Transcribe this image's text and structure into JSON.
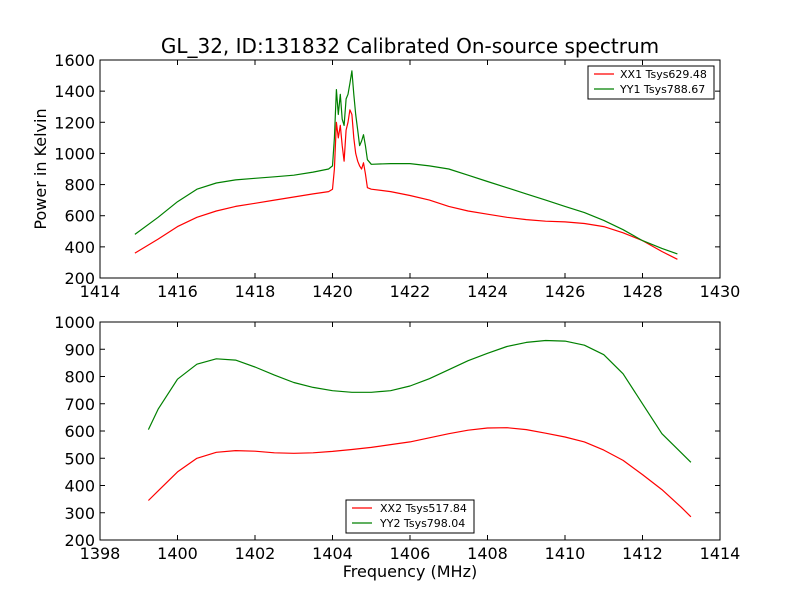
{
  "chart_data": [
    {
      "type": "line",
      "title": "GL_32, ID:131832 Calibrated On-source spectrum",
      "xlabel": "",
      "ylabel": "Power in Kelvin",
      "xlim": [
        1414,
        1430
      ],
      "ylim": [
        200,
        1600
      ],
      "xticks": [
        1414,
        1416,
        1418,
        1420,
        1422,
        1424,
        1426,
        1428,
        1430
      ],
      "yticks": [
        200,
        400,
        600,
        800,
        1000,
        1200,
        1400,
        1600
      ],
      "grid": false,
      "legend_position": "top-right",
      "series": [
        {
          "name": "XX1 Tsys629.48",
          "color": "#ff0000",
          "x": [
            1414.9,
            1415.5,
            1416.0,
            1416.5,
            1417.0,
            1417.5,
            1418.0,
            1418.5,
            1419.0,
            1419.5,
            1419.9,
            1420.0,
            1420.05,
            1420.1,
            1420.15,
            1420.2,
            1420.25,
            1420.3,
            1420.35,
            1420.4,
            1420.45,
            1420.5,
            1420.55,
            1420.6,
            1420.65,
            1420.7,
            1420.75,
            1420.8,
            1420.85,
            1420.9,
            1421.0,
            1421.5,
            1422.0,
            1422.5,
            1423.0,
            1423.5,
            1424.0,
            1424.5,
            1425.0,
            1425.5,
            1426.0,
            1426.5,
            1427.0,
            1427.5,
            1428.0,
            1428.5,
            1428.9
          ],
          "y": [
            360,
            450,
            530,
            590,
            630,
            660,
            680,
            700,
            720,
            740,
            755,
            770,
            900,
            1200,
            1100,
            1180,
            1050,
            950,
            1150,
            1200,
            1280,
            1250,
            1100,
            1000,
            950,
            920,
            900,
            940,
            870,
            780,
            770,
            755,
            730,
            700,
            660,
            630,
            610,
            590,
            575,
            565,
            560,
            550,
            530,
            490,
            440,
            370,
            320
          ]
        },
        {
          "name": "YY1 Tsys788.67",
          "color": "#008000",
          "x": [
            1414.9,
            1415.5,
            1416.0,
            1416.5,
            1417.0,
            1417.5,
            1418.0,
            1418.5,
            1419.0,
            1419.5,
            1419.9,
            1420.0,
            1420.05,
            1420.1,
            1420.15,
            1420.2,
            1420.25,
            1420.3,
            1420.35,
            1420.4,
            1420.45,
            1420.5,
            1420.55,
            1420.6,
            1420.65,
            1420.7,
            1420.75,
            1420.8,
            1420.85,
            1420.9,
            1421.0,
            1421.5,
            1422.0,
            1422.5,
            1423.0,
            1423.5,
            1424.0,
            1424.5,
            1425.0,
            1425.5,
            1426.0,
            1426.5,
            1427.0,
            1427.5,
            1428.0,
            1428.5,
            1428.9
          ],
          "y": [
            480,
            590,
            690,
            770,
            810,
            830,
            840,
            850,
            860,
            880,
            900,
            920,
            1100,
            1410,
            1250,
            1380,
            1220,
            1180,
            1350,
            1380,
            1450,
            1530,
            1380,
            1250,
            1150,
            1050,
            1080,
            1120,
            1050,
            960,
            930,
            935,
            935,
            920,
            900,
            860,
            820,
            780,
            740,
            700,
            660,
            620,
            570,
            510,
            440,
            390,
            355
          ]
        }
      ]
    },
    {
      "type": "line",
      "title": "",
      "xlabel": "Frequency (MHz)",
      "ylabel": "",
      "xlim": [
        1398,
        1414
      ],
      "ylim": [
        200,
        1000
      ],
      "xticks": [
        1398,
        1400,
        1402,
        1404,
        1406,
        1408,
        1410,
        1412,
        1414
      ],
      "yticks": [
        200,
        300,
        400,
        500,
        600,
        700,
        800,
        900,
        1000
      ],
      "grid": false,
      "legend_position": "bottom-center",
      "series": [
        {
          "name": "XX2 Tsys517.84",
          "color": "#ff0000",
          "x": [
            1399.25,
            1399.5,
            1400.0,
            1400.5,
            1401.0,
            1401.5,
            1402.0,
            1402.5,
            1403.0,
            1403.5,
            1404.0,
            1404.5,
            1405.0,
            1405.5,
            1406.0,
            1406.5,
            1407.0,
            1407.5,
            1408.0,
            1408.5,
            1409.0,
            1409.5,
            1410.0,
            1410.5,
            1411.0,
            1411.5,
            1412.0,
            1412.5,
            1413.0,
            1413.25
          ],
          "y": [
            345,
            380,
            450,
            500,
            522,
            528,
            526,
            520,
            518,
            520,
            525,
            532,
            540,
            550,
            560,
            575,
            590,
            603,
            611,
            612,
            605,
            592,
            578,
            560,
            530,
            492,
            440,
            385,
            320,
            285
          ]
        },
        {
          "name": "YY2 Tsys798.04",
          "color": "#008000",
          "x": [
            1399.25,
            1399.5,
            1400.0,
            1400.5,
            1401.0,
            1401.5,
            1402.0,
            1402.5,
            1403.0,
            1403.5,
            1404.0,
            1404.5,
            1405.0,
            1405.5,
            1406.0,
            1406.5,
            1407.0,
            1407.5,
            1408.0,
            1408.5,
            1409.0,
            1409.5,
            1410.0,
            1410.5,
            1411.0,
            1411.5,
            1412.0,
            1412.5,
            1413.0,
            1413.25
          ],
          "y": [
            605,
            680,
            790,
            845,
            865,
            860,
            835,
            805,
            778,
            760,
            748,
            742,
            742,
            748,
            765,
            792,
            825,
            858,
            885,
            910,
            925,
            932,
            930,
            915,
            880,
            810,
            700,
            590,
            520,
            485
          ]
        }
      ]
    }
  ]
}
